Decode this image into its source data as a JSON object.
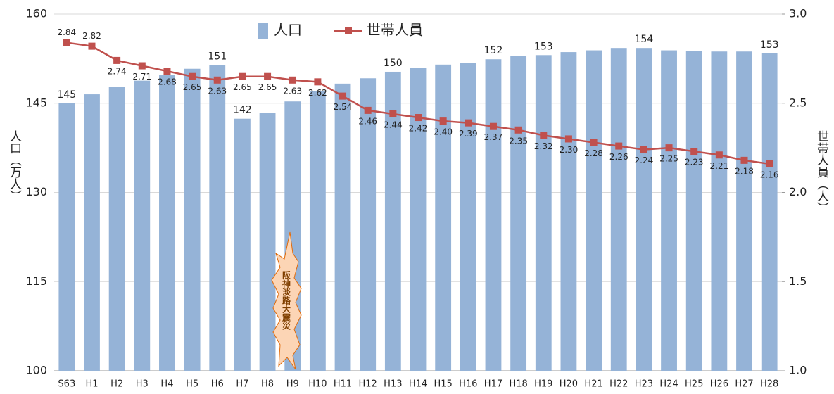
{
  "chart_data": {
    "type": "bar_line",
    "categories": [
      "S63",
      "H1",
      "H2",
      "H3",
      "H4",
      "H5",
      "H6",
      "H7",
      "H8",
      "H9",
      "H10",
      "H11",
      "H12",
      "H13",
      "H14",
      "H15",
      "H16",
      "H17",
      "H18",
      "H19",
      "H20",
      "H21",
      "H22",
      "H23",
      "H24",
      "H25",
      "H26",
      "H27",
      "H28"
    ],
    "series": [
      {
        "name": "人口",
        "type": "bar",
        "color": "#95b3d7",
        "axis": "y",
        "values": [
          145,
          146.5,
          147.7,
          148.8,
          149.7,
          150.8,
          151.4,
          142.4,
          143.4,
          145.3,
          147.0,
          148.3,
          149.2,
          150.3,
          150.9,
          151.5,
          151.8,
          152.4,
          152.9,
          153.1,
          153.6,
          153.9,
          154.3,
          154.3,
          153.9,
          153.8,
          153.7,
          153.7,
          153.4
        ],
        "value_labels": [
          "145",
          null,
          null,
          null,
          null,
          null,
          "151",
          "142",
          null,
          null,
          null,
          null,
          null,
          "150",
          null,
          null,
          null,
          "152",
          null,
          "153",
          null,
          null,
          null,
          "154",
          null,
          null,
          null,
          null,
          "153"
        ]
      },
      {
        "name": "世帯人員",
        "type": "line",
        "color": "#c0504d",
        "axis": "y2",
        "values": [
          2.84,
          2.82,
          2.74,
          2.71,
          2.68,
          2.65,
          2.63,
          2.65,
          2.65,
          2.63,
          2.62,
          2.54,
          2.46,
          2.44,
          2.42,
          2.4,
          2.39,
          2.37,
          2.35,
          2.32,
          2.3,
          2.28,
          2.26,
          2.24,
          2.25,
          2.23,
          2.21,
          2.18,
          2.16
        ],
        "value_labels": [
          "2.84",
          "2.82",
          "2.74",
          "2.71",
          "2.68",
          "2.65",
          "2.63",
          "2.65",
          "2.65",
          "2.63",
          "2.62",
          "2.54",
          "2.46",
          "2.44",
          "2.42",
          "2.40",
          "2.39",
          "2.37",
          "2.35",
          "2.32",
          "2.30",
          "2.28",
          "2.26",
          "2.24",
          "2.25",
          "2.23",
          "2.21",
          "2.18",
          "2.16"
        ]
      }
    ],
    "ylabel": "人口（万人）",
    "y2label": "世帯人員（人）",
    "ylim": [
      100,
      160
    ],
    "yticks": [
      100,
      115,
      130,
      145,
      160
    ],
    "y2lim": [
      1.0,
      3.0
    ],
    "y2ticks": [
      {
        "value": 1,
        "label": "1.0"
      },
      {
        "value": 1.5,
        "label": "1.5"
      },
      {
        "value": 2,
        "label": "2.0"
      },
      {
        "value": 2.5,
        "label": "2.5"
      },
      {
        "value": 3,
        "label": "3.0"
      }
    ],
    "grid": true,
    "legend": "top",
    "annotations": [
      "阪神淡路大震災"
    ]
  }
}
